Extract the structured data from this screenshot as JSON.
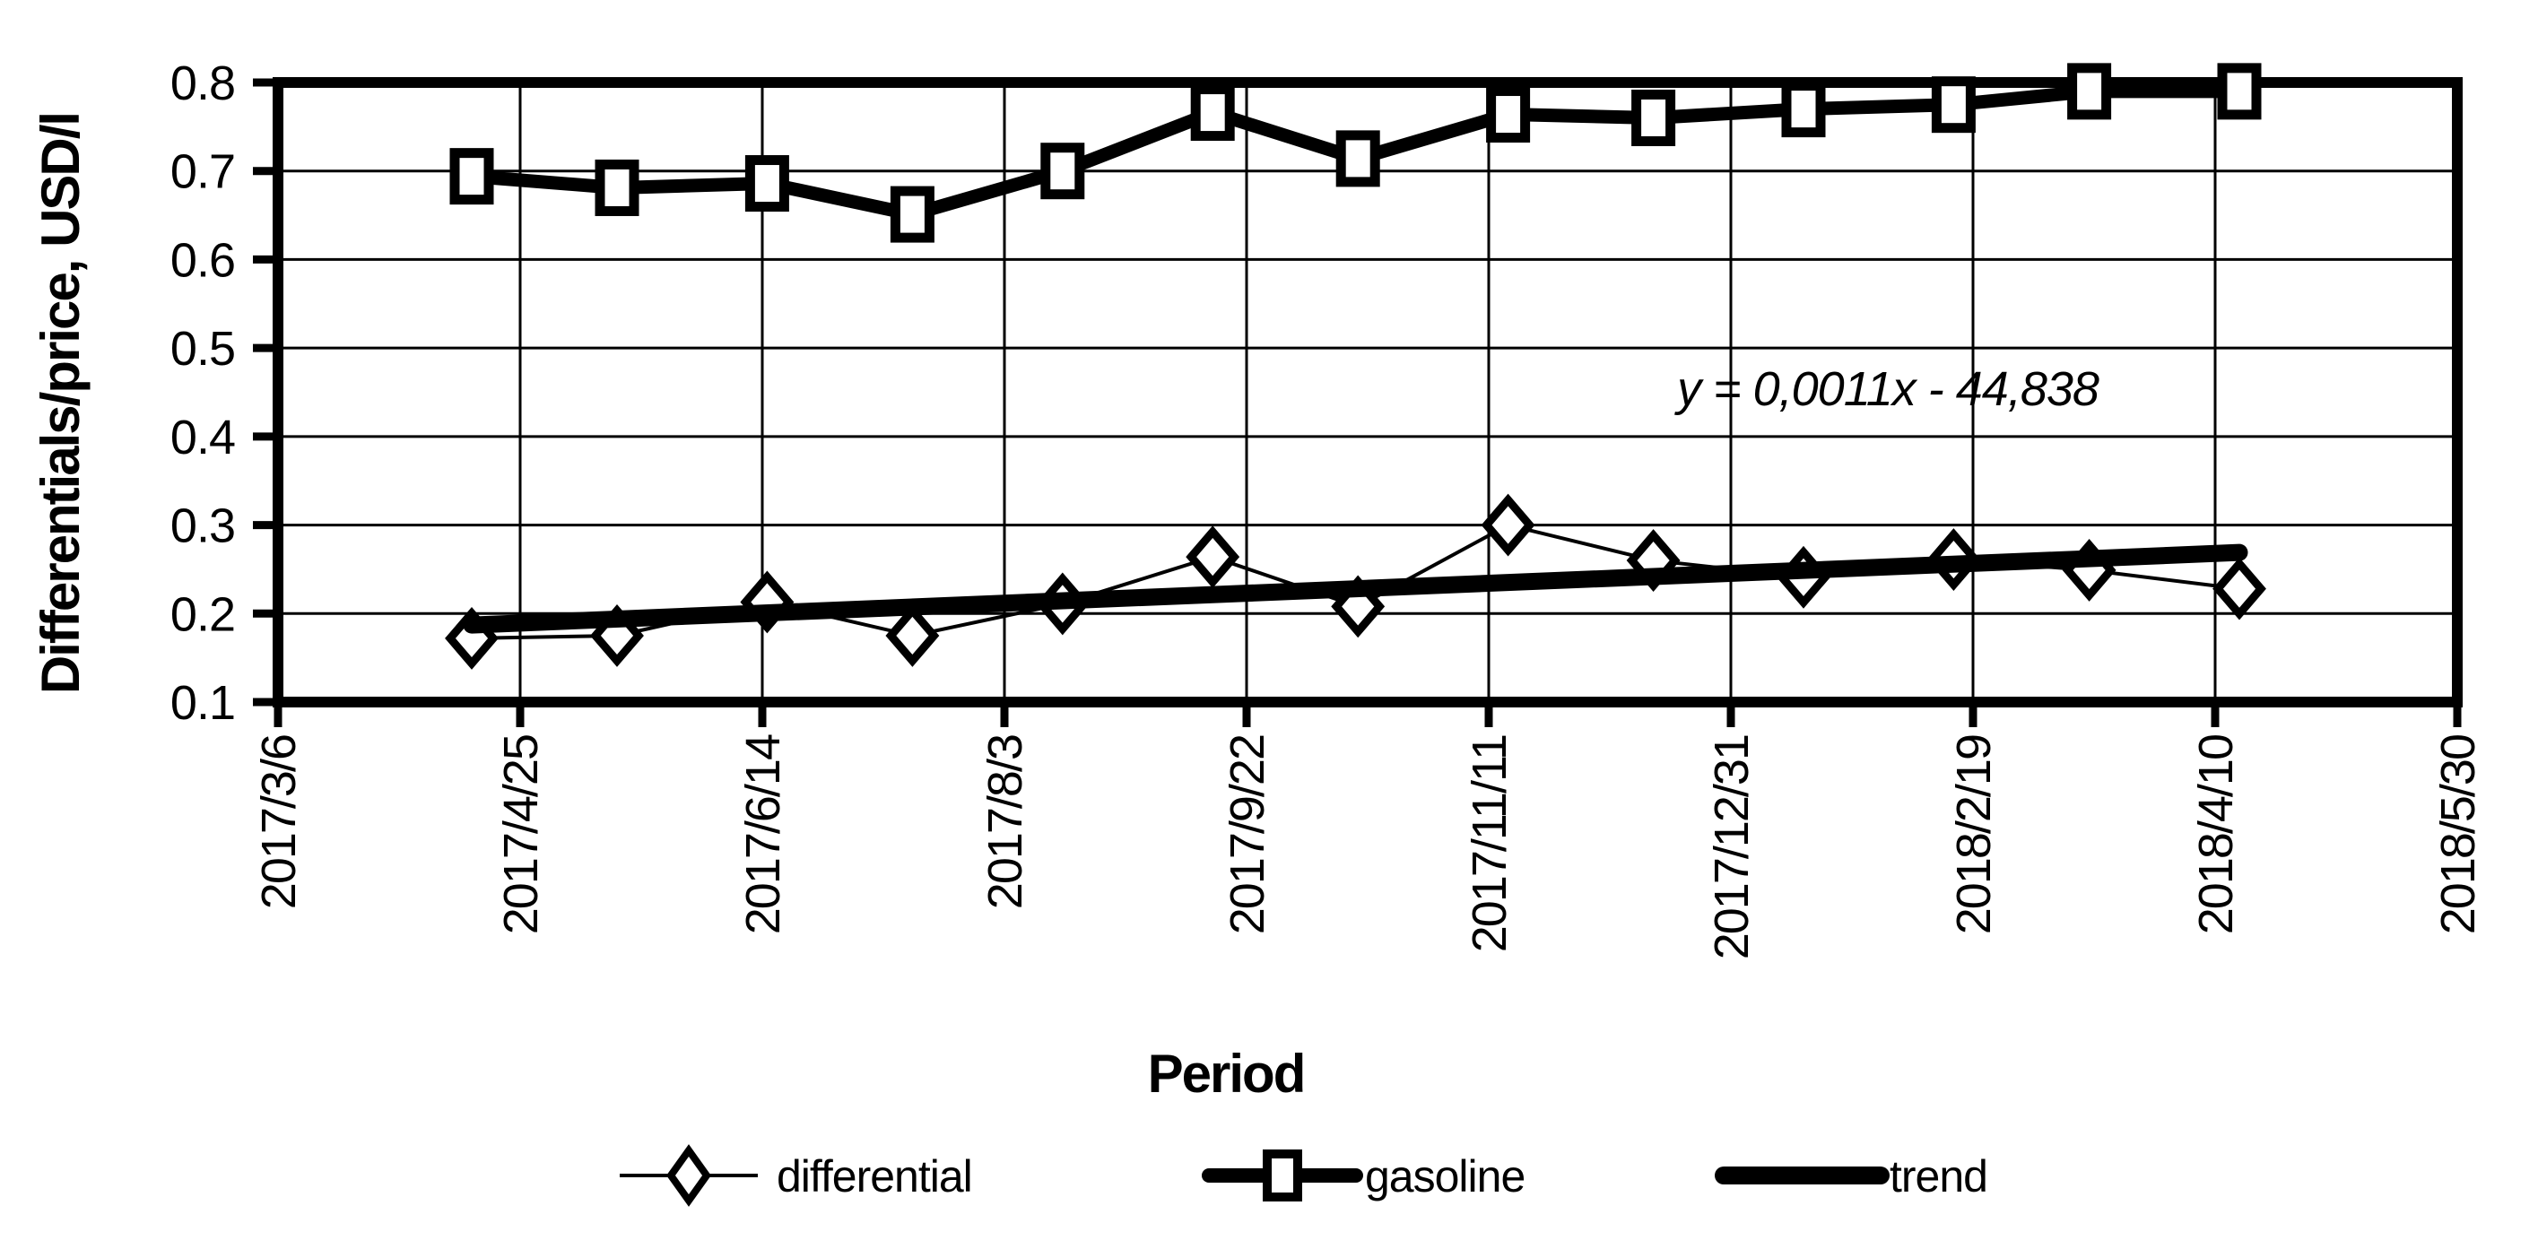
{
  "colors": {
    "foreground": "#000000",
    "background": "#ffffff"
  },
  "chart_data": {
    "type": "line",
    "title": "",
    "xlabel": "Period",
    "ylabel": "Differentials/price, USD/l",
    "ylim": [
      0.1,
      0.8
    ],
    "y_tick_step": 0.1,
    "y_tick_labels": [
      "0.1",
      "0.2",
      "0.3",
      "0.4",
      "0.5",
      "0.6",
      "0.7",
      "0.8"
    ],
    "xlim": [
      "2017/3/6",
      "2018/5/30"
    ],
    "x_ticks": [
      "2017/3/6",
      "2017/4/25",
      "2017/6/14",
      "2017/8/3",
      "2017/9/22",
      "2017/11/11",
      "2017/12/31",
      "2018/2/19",
      "2018/4/10",
      "2018/5/30"
    ],
    "grid": true,
    "legend_position": "bottom",
    "annotation": "y = 0,0011x - 44,838",
    "x": [
      "2017/4/15",
      "2017/5/15",
      "2017/6/15",
      "2017/7/15",
      "2017/8/15",
      "2017/9/15",
      "2017/10/15",
      "2017/11/15",
      "2017/12/15",
      "2018/1/15",
      "2018/2/15",
      "2018/3/15",
      "2018/4/15"
    ],
    "series": [
      {
        "name": "differential",
        "marker": "diamond",
        "line": "thin",
        "values": [
          0.172,
          0.175,
          0.213,
          0.175,
          0.211,
          0.264,
          0.208,
          0.3,
          0.26,
          0.241,
          0.261,
          0.249,
          0.228
        ]
      },
      {
        "name": "gasoline",
        "marker": "square",
        "line": "thick",
        "values": [
          0.694,
          0.681,
          0.686,
          0.651,
          0.7,
          0.766,
          0.714,
          0.764,
          0.76,
          0.77,
          0.775,
          0.79,
          0.79
        ]
      },
      {
        "name": "trend",
        "marker": "none",
        "line": "thick",
        "start": {
          "x": "2017/4/15",
          "y": 0.187
        },
        "end": {
          "x": "2018/4/15",
          "y": 0.269
        }
      }
    ]
  }
}
